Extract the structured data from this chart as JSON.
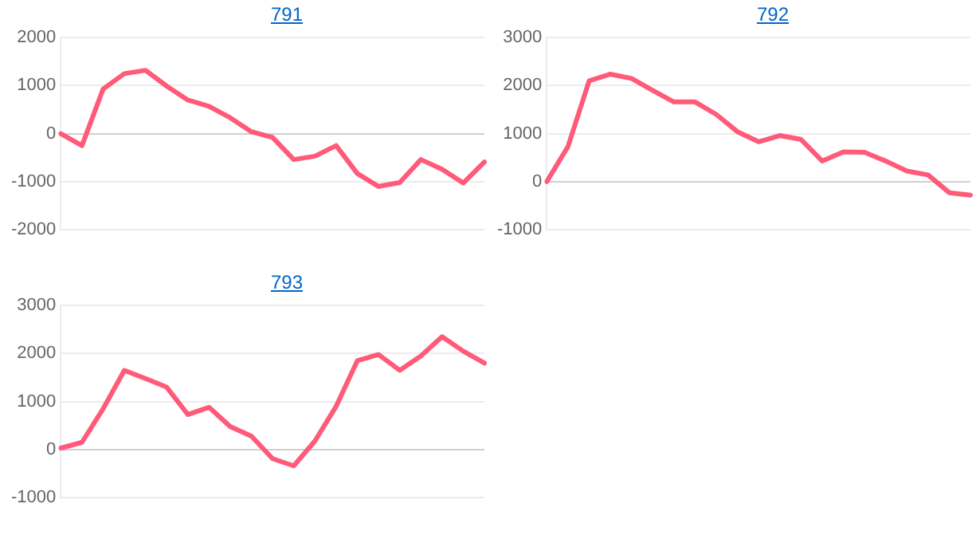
{
  "chart_data": [
    {
      "type": "line",
      "title": "791",
      "categories": [
        null,
        null,
        null,
        null,
        null,
        null,
        null,
        null,
        null,
        null,
        null,
        null,
        null,
        null,
        null,
        null,
        null,
        null,
        null,
        null,
        null
      ],
      "series": [
        {
          "color": "#ff5a78",
          "values": [
            0,
            -250,
            930,
            1250,
            1320,
            990,
            700,
            570,
            330,
            40,
            -80,
            -540,
            -470,
            -250,
            -830,
            -1100,
            -1020,
            -540,
            -740,
            -1030,
            -590
          ]
        }
      ],
      "ylim": [
        -2000,
        2000
      ],
      "yticks": [
        -2000,
        -1000,
        0,
        1000,
        2000
      ],
      "grid": "y",
      "tick_labels": "y",
      "marker": "none",
      "legend": false
    },
    {
      "type": "line",
      "title": "792",
      "categories": [
        null,
        null,
        null,
        null,
        null,
        null,
        null,
        null,
        null,
        null,
        null,
        null,
        null,
        null,
        null,
        null,
        null,
        null,
        null,
        null,
        null
      ],
      "series": [
        {
          "color": "#ff5a78",
          "values": [
            0,
            730,
            2100,
            2240,
            2150,
            1900,
            1660,
            1660,
            1400,
            1040,
            830,
            960,
            880,
            430,
            620,
            610,
            430,
            220,
            140,
            -230,
            -280
          ]
        }
      ],
      "ylim": [
        -1000,
        3000
      ],
      "yticks": [
        -1000,
        0,
        1000,
        2000,
        3000
      ],
      "grid": "y",
      "tick_labels": "y",
      "marker": "none",
      "legend": false
    },
    {
      "type": "line",
      "title": "793",
      "categories": [
        null,
        null,
        null,
        null,
        null,
        null,
        null,
        null,
        null,
        null,
        null,
        null,
        null,
        null,
        null,
        null,
        null,
        null,
        null,
        null,
        null
      ],
      "series": [
        {
          "color": "#ff5a78",
          "values": [
            30,
            150,
            850,
            1650,
            1480,
            1300,
            730,
            880,
            480,
            280,
            -190,
            -340,
            180,
            900,
            1850,
            1980,
            1650,
            1950,
            2350,
            2050,
            1800
          ]
        }
      ],
      "ylim": [
        -1000,
        3000
      ],
      "yticks": [
        -1000,
        0,
        1000,
        2000,
        3000
      ],
      "grid": "y",
      "tick_labels": "y",
      "marker": "none",
      "legend": false
    }
  ]
}
